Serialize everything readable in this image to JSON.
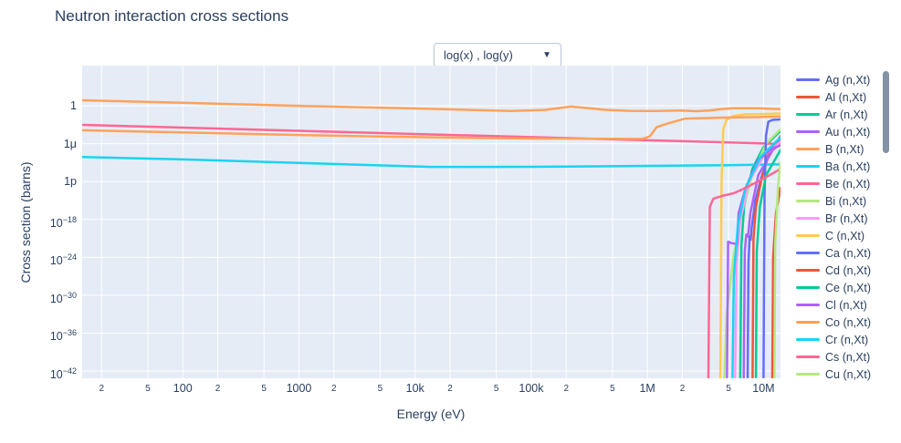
{
  "controls": {
    "axis_scale_dropdown": {
      "label": "log(x) , log(y)",
      "arrow": "▼"
    }
  },
  "colors": {
    "text": "#2a3f5f",
    "plot_background": "#E5ECF6",
    "gridline": "#ffffff",
    "dropdown_border": "#BEC8D9",
    "scrollbar": "#8492A6"
  },
  "chart_data": {
    "type": "line",
    "title": "Neutron interaction cross sections",
    "xlabel": "Energy (eV)",
    "ylabel": "Cross section (barns)",
    "x_scale": "log",
    "y_scale": "log",
    "grid": true,
    "legend_position": "right",
    "x_range_ev": [
      13.6,
      14000000.0
    ],
    "y_range_barns": [
      7e-44,
      2300000.0
    ],
    "x_ticks": [
      {
        "E": 20,
        "label": "2",
        "minor": true
      },
      {
        "E": 50,
        "label": "5",
        "minor": true
      },
      {
        "E": 100,
        "label": "100",
        "minor": false
      },
      {
        "E": 200,
        "label": "2",
        "minor": true
      },
      {
        "E": 500,
        "label": "5",
        "minor": true
      },
      {
        "E": 1000,
        "label": "1000",
        "minor": false
      },
      {
        "E": 2000,
        "label": "2",
        "minor": true
      },
      {
        "E": 5000,
        "label": "5",
        "minor": true
      },
      {
        "E": 10000.0,
        "label": "10k",
        "minor": false
      },
      {
        "E": 20000.0,
        "label": "2",
        "minor": true
      },
      {
        "E": 50000.0,
        "label": "5",
        "minor": true
      },
      {
        "E": 100000.0,
        "label": "100k",
        "minor": false
      },
      {
        "E": 200000.0,
        "label": "2",
        "minor": true
      },
      {
        "E": 500000.0,
        "label": "5",
        "minor": true
      },
      {
        "E": 1000000.0,
        "label": "1M",
        "minor": false
      },
      {
        "E": 2000000.0,
        "label": "2",
        "minor": true
      },
      {
        "E": 5000000.0,
        "label": "5",
        "minor": true
      },
      {
        "E": 10000000.0,
        "label": "10M",
        "minor": false
      }
    ],
    "y_ticks": [
      {
        "sigma": 1,
        "text": "1"
      },
      {
        "sigma": 1e-06,
        "text": "1μ"
      },
      {
        "sigma": 1e-12,
        "text": "1p"
      },
      {
        "sigma": 1e-18,
        "text": "10",
        "exp": "−18"
      },
      {
        "sigma": 1e-24,
        "text": "10",
        "exp": "−24"
      },
      {
        "sigma": 1e-30,
        "text": "10",
        "exp": "−30"
      },
      {
        "sigma": 1e-36,
        "text": "10",
        "exp": "−36"
      },
      {
        "sigma": 1e-42,
        "text": "10",
        "exp": "−42"
      }
    ],
    "series": [
      {
        "name": "Ag (n,Xt)",
        "color": "#636EFA",
        "points": [
          [
            7300000.0,
            1e-43
          ],
          [
            7420000.0,
            1e-25
          ],
          [
            7600000.0,
            2e-21
          ],
          [
            7750000.0,
            6e-22
          ],
          [
            7900000.0,
            5e-20
          ],
          [
            8500000.0,
            1e-15
          ],
          [
            9500000.0,
            3e-12
          ],
          [
            11000000.0,
            1e-08
          ],
          [
            14000000.0,
            8e-06
          ]
        ]
      },
      {
        "name": "Al (n,Xt)",
        "color": "#EF553B",
        "points": [
          [
            8050000.0,
            1e-43
          ],
          [
            8200000.0,
            1e-21
          ],
          [
            8600000.0,
            1e-16
          ],
          [
            9500000.0,
            1e-12
          ],
          [
            11000000.0,
            2e-08
          ],
          [
            14000000.0,
            1.5e-05
          ]
        ]
      },
      {
        "name": "Ar (n,Xt)",
        "color": "#00CC96",
        "points": [
          [
            6300000.0,
            1e-43
          ],
          [
            6450000.0,
            1e-22
          ],
          [
            6800000.0,
            1e-16
          ],
          [
            8000000.0,
            1e-10
          ],
          [
            10000000.0,
            3e-07
          ],
          [
            14000000.0,
            0.0001
          ]
        ]
      },
      {
        "name": "Au (n,Xt)",
        "color": "#AB63FA",
        "points": [
          [
            6750000.0,
            1e-43
          ],
          [
            6900000.0,
            1e-23
          ],
          [
            7100000.0,
            4e-21
          ],
          [
            7350000.0,
            2e-21
          ],
          [
            7700000.0,
            1e-17
          ],
          [
            9000000.0,
            1e-11
          ],
          [
            12000000.0,
            1e-07
          ],
          [
            14000000.0,
            1e-06
          ]
        ]
      },
      {
        "name": "B (n,Xt)",
        "color": "#FFA15A",
        "points": [
          [
            13.6,
            7.4
          ],
          [
            40,
            4.5
          ],
          [
            100,
            3.0
          ],
          [
            400,
            1.5
          ],
          [
            1000.0,
            1.0
          ],
          [
            4000.0,
            0.55
          ],
          [
            10000.0,
            0.38
          ],
          [
            30000.0,
            0.22
          ],
          [
            67000.0,
            0.15
          ],
          [
            130000.0,
            0.22
          ],
          [
            220000.0,
            0.75
          ],
          [
            300000.0,
            0.45
          ],
          [
            450000.0,
            0.22
          ],
          [
            700000.0,
            0.16
          ],
          [
            1200000.0,
            0.15
          ],
          [
            2000000.0,
            0.18
          ],
          [
            2600000.0,
            0.14
          ],
          [
            3400000.0,
            0.18
          ],
          [
            4300000.0,
            0.3
          ],
          [
            5500000.0,
            0.42
          ],
          [
            7000000.0,
            0.4
          ],
          [
            9000000.0,
            0.42
          ],
          [
            11000000.0,
            0.35
          ],
          [
            14000000.0,
            0.3
          ]
        ]
      },
      {
        "name": "Ba (n,Xt)",
        "color": "#19D3F3",
        "points": [
          [
            13.6,
            8e-09
          ],
          [
            100,
            3.2e-09
          ],
          [
            1000.0,
            9e-10
          ],
          [
            14000.0,
            2.1e-10
          ],
          [
            100000.0,
            2.2e-10
          ],
          [
            1000000.0,
            3e-10
          ],
          [
            5000000.0,
            4e-10
          ],
          [
            14000000.0,
            5.5e-10
          ]
        ]
      },
      {
        "name": "Be (n,Xt)",
        "color": "#FF6692",
        "points": [
          [
            13.6,
            0.00094
          ],
          [
            100,
            0.00035
          ],
          [
            1000.0,
            0.00011
          ],
          [
            10000.0,
            3.4e-05
          ],
          [
            100000.0,
            1.1e-05
          ],
          [
            1000000.0,
            3.5e-06
          ],
          [
            5000000.0,
            1.6e-06
          ],
          [
            14000000.0,
            9e-07
          ]
        ]
      },
      {
        "name": "Bi (n,Xt)",
        "color": "#B6E880",
        "points": [
          [
            4600000.0,
            1e-43
          ],
          [
            4800000.0,
            1e-33
          ],
          [
            5500000.0,
            1e-24
          ],
          [
            6500000.0,
            1e-17
          ],
          [
            8000000.0,
            1e-11
          ],
          [
            10500000.0,
            1e-06
          ],
          [
            14000000.0,
            0.0002
          ]
        ]
      },
      {
        "name": "Br (n,Xt)",
        "color": "#FF97FF",
        "points": [
          [
            5700000.0,
            1e-43
          ],
          [
            5850000.0,
            1e-25
          ],
          [
            6300000.0,
            1e-18
          ],
          [
            7500000.0,
            1e-12
          ],
          [
            10000000.0,
            1e-08
          ],
          [
            14000000.0,
            2e-06
          ]
        ]
      },
      {
        "name": "C (n,Xt)",
        "color": "#FECB52",
        "points": [
          [
            4250000.0,
            1e-43
          ],
          [
            4350000.0,
            1e-12
          ],
          [
            4500000.0,
            0.0002
          ],
          [
            4800000.0,
            0.006
          ],
          [
            5500000.0,
            0.025
          ],
          [
            7000000.0,
            0.045
          ],
          [
            10000000.0,
            0.05
          ],
          [
            14000000.0,
            0.06
          ]
        ]
      },
      {
        "name": "Ca (n,Xt)",
        "color": "#636EFA",
        "points": [
          [
            10000000.0,
            1e-43
          ],
          [
            10200000.0,
            1e-14
          ],
          [
            10500000.0,
            2e-05
          ],
          [
            11000000.0,
            0.003
          ],
          [
            12000000.0,
            0.006
          ],
          [
            14000000.0,
            0.007
          ]
        ]
      },
      {
        "name": "Cd (n,Xt)",
        "color": "#EF553B",
        "points": [
          [
            11900000.0,
            1e-43
          ],
          [
            12100000.0,
            1e-24
          ],
          [
            12800000.0,
            1e-17
          ],
          [
            14000000.0,
            1e-13
          ]
        ]
      },
      {
        "name": "Ce (n,Xt)",
        "color": "#00CC96",
        "points": [
          [
            8600000.0,
            1e-43
          ],
          [
            8750000.0,
            1e-23
          ],
          [
            9300000.0,
            1e-16
          ],
          [
            10500000.0,
            1e-11
          ],
          [
            14000000.0,
            1e-07
          ]
        ]
      },
      {
        "name": "Cl (n,Xt)",
        "color": "#AB63FA",
        "points": [
          [
            4850000.0,
            1e-43
          ],
          [
            4950000.0,
            3e-22
          ],
          [
            5300000.0,
            1.8e-22
          ],
          [
            5900000.0,
            1.2e-22
          ],
          [
            6100000.0,
            1e-17
          ],
          [
            7000000.0,
            1e-13
          ],
          [
            9000000.0,
            3e-09
          ],
          [
            12000000.0,
            2e-07
          ],
          [
            14000000.0,
            5e-07
          ]
        ]
      },
      {
        "name": "Co (n,Xt)",
        "color": "#FFA15A",
        "points": [
          [
            13.6,
            0.000135
          ],
          [
            100,
            6e-05
          ],
          [
            1000.0,
            2.4e-05
          ],
          [
            10000.0,
            1.1e-05
          ],
          [
            100000.0,
            6.5e-06
          ],
          [
            500000.0,
            5.8e-06
          ],
          [
            900000.0,
            5.6e-06
          ],
          [
            1050000.0,
            1.5e-05
          ],
          [
            1200000.0,
            0.0004
          ],
          [
            1500000.0,
            0.0016
          ],
          [
            2100000.0,
            0.009
          ],
          [
            3000000.0,
            0.011
          ],
          [
            5000000.0,
            0.014
          ],
          [
            9000000.0,
            0.016
          ],
          [
            14000000.0,
            0.02
          ]
        ]
      },
      {
        "name": "Cr (n,Xt)",
        "color": "#19D3F3",
        "points": [
          [
            5400000.0,
            1e-43
          ],
          [
            5550000.0,
            1e-27
          ],
          [
            6000000.0,
            1e-19
          ],
          [
            7000000.0,
            1e-13
          ],
          [
            9500000.0,
            1e-08
          ],
          [
            14000000.0,
            1e-05
          ]
        ]
      },
      {
        "name": "Cs (n,Xt)",
        "color": "#FF6692",
        "points": [
          [
            3350000.0,
            1e-43
          ],
          [
            3450000.0,
            1e-16
          ],
          [
            3700000.0,
            2e-15
          ],
          [
            4500000.0,
            6e-15
          ],
          [
            5600000.0,
            1.5e-14
          ],
          [
            7000000.0,
            1e-13
          ],
          [
            10000000.0,
            3e-12
          ],
          [
            14000000.0,
            1e-10
          ]
        ]
      },
      {
        "name": "Cu (n,Xt)",
        "color": "#B6E880",
        "points": [
          [
            12400000.0,
            1e-43
          ],
          [
            12600000.0,
            1e-22
          ],
          [
            13300000.0,
            1e-13
          ],
          [
            14000000.0,
            1e-09
          ]
        ]
      }
    ]
  }
}
